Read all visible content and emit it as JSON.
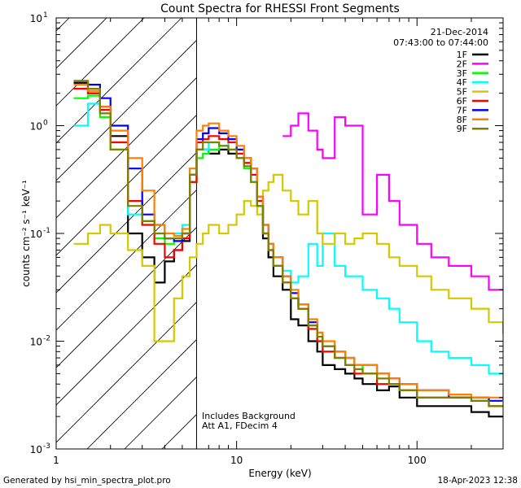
{
  "chart_data": {
    "type": "line",
    "title": "Count Spectra for RHESSI Front Segments",
    "xlabel": "Energy (keV)",
    "ylabel": "counts cm⁻² s⁻¹ keV⁻¹",
    "xscale": "log",
    "yscale": "log",
    "xlim": [
      1,
      300
    ],
    "ylim": [
      0.001,
      10
    ],
    "x_tick_labels": [
      {
        "value": 1,
        "label": "1"
      },
      {
        "value": 10,
        "label": "10"
      },
      {
        "value": 100,
        "label": "100"
      }
    ],
    "y_tick_labels": [
      {
        "value": 0.001,
        "base": "10",
        "exp": "-3"
      },
      {
        "value": 0.01,
        "base": "10",
        "exp": "-2"
      },
      {
        "value": 0.1,
        "base": "10",
        "exp": "-1"
      },
      {
        "value": 1,
        "base": "10",
        "exp": "0"
      },
      {
        "value": 10,
        "base": "10",
        "exp": "1"
      }
    ],
    "date": "21-Dec-2014",
    "time_range": "07:43:00 to 07:44:00",
    "annotations": [
      "Includes Background",
      "Att A1, FDecim 4"
    ],
    "shaded_region": {
      "x_max_keV": 6
    },
    "series": [
      {
        "name": "1F",
        "color": "#000000",
        "energies": [
          1.25,
          1.5,
          1.75,
          2,
          2.5,
          3,
          3.5,
          4,
          4.5,
          5,
          5.5,
          6,
          6.5,
          7,
          8,
          9,
          10,
          11,
          12,
          13,
          14,
          15,
          16,
          18,
          20,
          22,
          25,
          28,
          30,
          35,
          40,
          45,
          50,
          60,
          70,
          80,
          100,
          120,
          150,
          200,
          250,
          300
        ],
        "values": [
          2.5,
          2.0,
          1.5,
          0.8,
          0.1,
          0.06,
          0.035,
          0.055,
          0.07,
          0.085,
          0.3,
          0.6,
          0.6,
          0.55,
          0.6,
          0.55,
          0.5,
          0.45,
          0.3,
          0.18,
          0.09,
          0.06,
          0.04,
          0.03,
          0.016,
          0.014,
          0.01,
          0.008,
          0.006,
          0.0055,
          0.005,
          0.0045,
          0.004,
          0.0035,
          0.0038,
          0.003,
          0.0025,
          0.0025,
          0.0025,
          0.0022,
          0.002,
          0.002
        ]
      },
      {
        "name": "2F",
        "color": "#ff00ff",
        "energies": [
          18,
          20,
          22,
          25,
          28,
          30,
          35,
          40,
          50,
          60,
          70,
          80,
          100,
          120,
          150,
          200,
          250,
          300
        ],
        "values": [
          0.8,
          1.0,
          1.3,
          0.9,
          0.6,
          0.5,
          1.2,
          1.0,
          0.15,
          0.35,
          0.2,
          0.12,
          0.08,
          0.06,
          0.05,
          0.04,
          0.03,
          0.03
        ]
      },
      {
        "name": "3F",
        "color": "#00ff00",
        "energies": [
          1.25,
          1.5,
          1.75,
          2,
          2.5,
          3,
          3.5,
          4,
          4.5,
          5,
          5.5,
          6,
          6.5,
          7,
          8,
          9,
          10,
          11,
          12,
          13,
          14,
          15,
          16,
          18,
          20,
          22,
          25,
          28,
          30,
          35,
          40,
          45,
          50,
          60,
          70,
          80,
          100,
          120,
          150,
          200,
          250,
          300
        ],
        "values": [
          1.8,
          1.9,
          1.2,
          0.6,
          0.2,
          0.13,
          0.09,
          0.08,
          0.085,
          0.1,
          0.3,
          0.5,
          0.55,
          0.6,
          0.65,
          0.6,
          0.5,
          0.4,
          0.3,
          0.18,
          0.1,
          0.07,
          0.05,
          0.035,
          0.025,
          0.02,
          0.014,
          0.01,
          0.008,
          0.007,
          0.006,
          0.006,
          0.005,
          0.004,
          0.004,
          0.0035,
          0.003,
          0.003,
          0.003,
          0.003,
          0.0025,
          0.0025
        ]
      },
      {
        "name": "4F",
        "color": "#00ffff",
        "energies": [
          1.25,
          1.5,
          1.75,
          2,
          2.5,
          3,
          3.5,
          4,
          4.5,
          5,
          5.5,
          6,
          6.5,
          7,
          8,
          9,
          10,
          11,
          12,
          13,
          14,
          15,
          16,
          18,
          20,
          22,
          25,
          28,
          30,
          35,
          40,
          45,
          50,
          60,
          70,
          80,
          100,
          120,
          150,
          200,
          250,
          300
        ],
        "values": [
          1.0,
          1.6,
          1.3,
          0.7,
          0.15,
          0.12,
          0.1,
          0.1,
          0.1,
          0.12,
          0.35,
          0.6,
          0.6,
          0.7,
          0.65,
          0.7,
          0.5,
          0.45,
          0.3,
          0.2,
          0.12,
          0.08,
          0.06,
          0.045,
          0.035,
          0.04,
          0.08,
          0.05,
          0.1,
          0.05,
          0.04,
          0.04,
          0.03,
          0.025,
          0.02,
          0.015,
          0.01,
          0.008,
          0.007,
          0.006,
          0.005,
          0.005
        ]
      },
      {
        "name": "5F",
        "color": "#d4c800",
        "energies": [
          1.25,
          1.5,
          1.75,
          2,
          2.5,
          3,
          3.5,
          4,
          4.5,
          5,
          5.5,
          6,
          6.5,
          7,
          8,
          9,
          10,
          11,
          12,
          13,
          14,
          15,
          16,
          18,
          20,
          22,
          25,
          28,
          30,
          35,
          40,
          45,
          50,
          60,
          70,
          80,
          100,
          120,
          150,
          200,
          250,
          300
        ],
        "values": [
          0.08,
          0.1,
          0.12,
          0.1,
          0.07,
          0.05,
          0.01,
          0.01,
          0.025,
          0.04,
          0.06,
          0.08,
          0.1,
          0.12,
          0.1,
          0.12,
          0.15,
          0.2,
          0.18,
          0.15,
          0.25,
          0.3,
          0.35,
          0.25,
          0.2,
          0.15,
          0.2,
          0.1,
          0.08,
          0.1,
          0.08,
          0.09,
          0.1,
          0.08,
          0.06,
          0.05,
          0.04,
          0.03,
          0.025,
          0.02,
          0.015,
          0.012
        ]
      },
      {
        "name": "6F",
        "color": "#ff0000",
        "energies": [
          1.25,
          1.5,
          1.75,
          2,
          2.5,
          3,
          3.5,
          4,
          4.5,
          5,
          5.5,
          6,
          6.5,
          7,
          8,
          9,
          10,
          11,
          12,
          13,
          14,
          15,
          16,
          18,
          20,
          22,
          25,
          28,
          30,
          35,
          40,
          45,
          50,
          60,
          70,
          80,
          100,
          120,
          150,
          200,
          250,
          300
        ],
        "values": [
          2.2,
          2.0,
          1.4,
          0.7,
          0.2,
          0.12,
          0.08,
          0.06,
          0.07,
          0.09,
          0.3,
          0.7,
          0.75,
          0.8,
          0.75,
          0.7,
          0.55,
          0.45,
          0.35,
          0.2,
          0.1,
          0.07,
          0.05,
          0.035,
          0.025,
          0.02,
          0.013,
          0.01,
          0.008,
          0.007,
          0.006,
          0.005,
          0.005,
          0.004,
          0.004,
          0.0035,
          0.003,
          0.003,
          0.003,
          0.0028,
          0.0025,
          0.0025
        ]
      },
      {
        "name": "7F",
        "color": "#0000ff",
        "energies": [
          1.25,
          1.5,
          1.75,
          2,
          2.5,
          3,
          3.5,
          4,
          4.5,
          5,
          5.5,
          6,
          6.5,
          7,
          8,
          9,
          10,
          11,
          12,
          13,
          14,
          15,
          16,
          18,
          20,
          22,
          25,
          28,
          30,
          35,
          40,
          45,
          50,
          60,
          70,
          80,
          100,
          120,
          150,
          200,
          250,
          300
        ],
        "values": [
          2.6,
          2.4,
          1.8,
          1.0,
          0.4,
          0.15,
          0.12,
          0.09,
          0.085,
          0.1,
          0.35,
          0.75,
          0.85,
          0.95,
          0.85,
          0.75,
          0.6,
          0.5,
          0.4,
          0.22,
          0.12,
          0.08,
          0.06,
          0.04,
          0.028,
          0.022,
          0.015,
          0.012,
          0.009,
          0.008,
          0.007,
          0.006,
          0.006,
          0.005,
          0.0045,
          0.004,
          0.0035,
          0.0035,
          0.003,
          0.003,
          0.0028,
          0.0028
        ]
      },
      {
        "name": "8F",
        "color": "#ff8000",
        "energies": [
          1.25,
          1.5,
          1.75,
          2,
          2.5,
          3,
          3.5,
          4,
          4.5,
          5,
          5.5,
          6,
          6.5,
          7,
          8,
          9,
          10,
          11,
          12,
          13,
          14,
          15,
          16,
          18,
          20,
          22,
          25,
          28,
          30,
          35,
          40,
          45,
          50,
          60,
          70,
          80,
          100,
          120,
          150,
          200,
          250,
          300
        ],
        "values": [
          2.4,
          2.1,
          1.5,
          0.9,
          0.5,
          0.25,
          0.12,
          0.1,
          0.095,
          0.11,
          0.4,
          0.9,
          1.0,
          1.05,
          0.9,
          0.8,
          0.65,
          0.5,
          0.4,
          0.22,
          0.12,
          0.08,
          0.06,
          0.04,
          0.03,
          0.022,
          0.016,
          0.012,
          0.01,
          0.008,
          0.007,
          0.006,
          0.006,
          0.005,
          0.0045,
          0.004,
          0.0035,
          0.0035,
          0.0032,
          0.003,
          0.003,
          0.0028
        ]
      },
      {
        "name": "9F",
        "color": "#808000",
        "energies": [
          1.25,
          1.5,
          1.75,
          2,
          2.5,
          3,
          3.5,
          4,
          4.5,
          5,
          5.5,
          6,
          6.5,
          7,
          8,
          9,
          10,
          11,
          12,
          13,
          14,
          15,
          16,
          18,
          20,
          22,
          25,
          28,
          30,
          35,
          40,
          45,
          50,
          60,
          70,
          80,
          100,
          120,
          150,
          200,
          250,
          300
        ],
        "values": [
          2.6,
          2.2,
          1.3,
          0.6,
          0.18,
          0.13,
          0.1,
          0.09,
          0.09,
          0.1,
          0.35,
          0.6,
          0.7,
          0.7,
          0.65,
          0.6,
          0.5,
          0.42,
          0.3,
          0.18,
          0.1,
          0.07,
          0.05,
          0.035,
          0.025,
          0.02,
          0.014,
          0.011,
          0.009,
          0.007,
          0.006,
          0.0055,
          0.005,
          0.0045,
          0.004,
          0.0035,
          0.003,
          0.003,
          0.003,
          0.0028,
          0.0025,
          0.0025
        ]
      }
    ]
  },
  "footer": {
    "generated_by": "Generated by hsi_min_spectra_plot.pro",
    "timestamp": "18-Apr-2023 12:38"
  },
  "colors": {
    "axis": "#000000",
    "background": "#ffffff"
  }
}
